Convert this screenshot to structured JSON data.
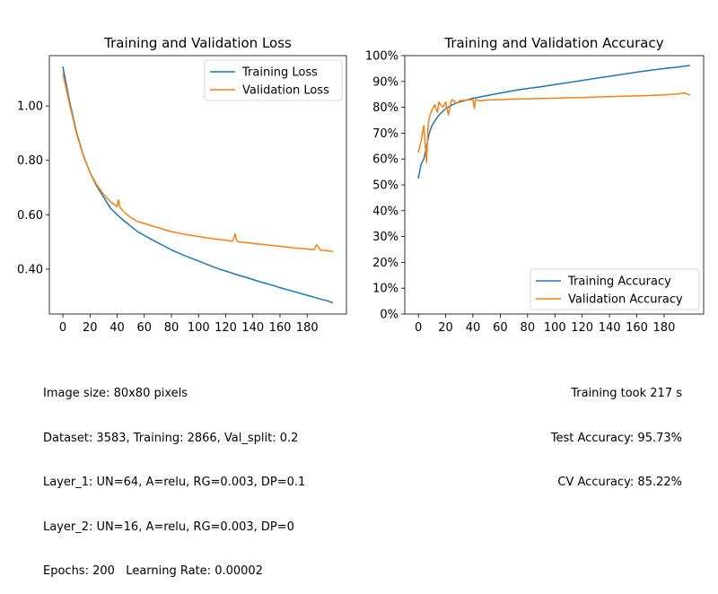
{
  "chart_data": [
    {
      "type": "line",
      "title": "Training and Validation Loss",
      "xlabel": "",
      "ylabel": "",
      "xlim": [
        -9.95,
        208.95
      ],
      "ylim": [
        0.235,
        1.185
      ],
      "xticks": [
        0,
        20,
        40,
        60,
        80,
        100,
        120,
        140,
        160,
        180
      ],
      "xtick_labels": [
        "0",
        "20",
        "40",
        "60",
        "80",
        "100",
        "120",
        "140",
        "160",
        "180"
      ],
      "yticks": [
        0.4,
        0.6,
        0.8,
        1.0
      ],
      "ytick_labels": [
        "0.40",
        "0.60",
        "0.80",
        "1.00"
      ],
      "grid": false,
      "legend": "top-right",
      "series": [
        {
          "name": "Training Loss",
          "color": "#1f77b4",
          "x": [
            0,
            5,
            10,
            15,
            20,
            25,
            30,
            35,
            40,
            45,
            50,
            55,
            60,
            65,
            70,
            75,
            80,
            85,
            90,
            95,
            100,
            105,
            110,
            115,
            120,
            125,
            130,
            135,
            140,
            145,
            150,
            155,
            160,
            165,
            170,
            175,
            180,
            185,
            190,
            195,
            199
          ],
          "values": [
            1.145,
            1.015,
            0.905,
            0.82,
            0.755,
            0.705,
            0.665,
            0.625,
            0.6,
            0.578,
            0.558,
            0.538,
            0.524,
            0.51,
            0.497,
            0.484,
            0.471,
            0.46,
            0.449,
            0.44,
            0.43,
            0.42,
            0.41,
            0.401,
            0.393,
            0.385,
            0.377,
            0.37,
            0.362,
            0.354,
            0.347,
            0.34,
            0.332,
            0.325,
            0.318,
            0.311,
            0.304,
            0.297,
            0.29,
            0.283,
            0.277
          ]
        },
        {
          "name": "Validation Loss",
          "color": "#ff7f0e",
          "x": [
            0,
            5,
            10,
            15,
            20,
            25,
            30,
            35,
            40,
            41,
            42,
            45,
            50,
            55,
            60,
            65,
            70,
            75,
            80,
            85,
            90,
            95,
            100,
            105,
            110,
            115,
            120,
            125,
            127,
            128,
            130,
            135,
            140,
            145,
            150,
            155,
            160,
            165,
            170,
            175,
            180,
            185,
            187,
            190,
            195,
            199
          ],
          "values": [
            1.12,
            1.005,
            0.9,
            0.818,
            0.755,
            0.71,
            0.675,
            0.648,
            0.63,
            0.655,
            0.628,
            0.61,
            0.59,
            0.575,
            0.568,
            0.56,
            0.553,
            0.545,
            0.538,
            0.533,
            0.528,
            0.524,
            0.52,
            0.516,
            0.512,
            0.509,
            0.506,
            0.503,
            0.53,
            0.505,
            0.5,
            0.498,
            0.495,
            0.492,
            0.49,
            0.487,
            0.484,
            0.481,
            0.478,
            0.476,
            0.474,
            0.472,
            0.49,
            0.47,
            0.468,
            0.465
          ]
        }
      ]
    },
    {
      "type": "line",
      "title": "Training and Validation Accuracy",
      "xlabel": "",
      "ylabel": "",
      "xlim": [
        -9.95,
        208.95
      ],
      "ylim": [
        0,
        100
      ],
      "xticks": [
        0,
        20,
        40,
        60,
        80,
        100,
        120,
        140,
        160,
        180
      ],
      "xtick_labels": [
        "0",
        "20",
        "40",
        "60",
        "80",
        "100",
        "120",
        "140",
        "160",
        "180"
      ],
      "yticks": [
        0,
        10,
        20,
        30,
        40,
        50,
        60,
        70,
        80,
        90,
        100
      ],
      "ytick_labels": [
        "0%",
        "10%",
        "20%",
        "30%",
        "40%",
        "50%",
        "60%",
        "70%",
        "80%",
        "90%",
        "100%"
      ],
      "grid": false,
      "legend": "bottom-right",
      "series": [
        {
          "name": "Training Accuracy",
          "color": "#1f77b4",
          "x": [
            0,
            2,
            4,
            6,
            8,
            10,
            15,
            20,
            25,
            30,
            40,
            50,
            60,
            70,
            80,
            90,
            100,
            110,
            120,
            130,
            140,
            150,
            160,
            170,
            180,
            190,
            199
          ],
          "values": [
            52.5,
            58,
            60,
            65,
            70,
            73,
            77,
            79.5,
            81,
            82,
            83.5,
            84.5,
            85.5,
            86.5,
            87.3,
            88,
            88.8,
            89.6,
            90.4,
            91.2,
            92,
            92.8,
            93.6,
            94.3,
            95,
            95.6,
            96.2
          ]
        },
        {
          "name": "Validation Accuracy",
          "color": "#ff7f0e",
          "x": [
            0,
            2,
            4,
            5,
            6,
            7,
            8,
            10,
            12,
            14,
            15,
            18,
            20,
            22,
            24,
            25,
            28,
            30,
            35,
            40,
            41,
            42,
            45,
            50,
            60,
            70,
            80,
            90,
            100,
            110,
            120,
            130,
            140,
            150,
            160,
            170,
            180,
            190,
            195,
            199
          ],
          "values": [
            62.5,
            67,
            73,
            66,
            58.5,
            72,
            76,
            79,
            81,
            78,
            82,
            80,
            82,
            77,
            82,
            83,
            81.5,
            82.5,
            82.8,
            83,
            79.5,
            83,
            82.5,
            82.8,
            83,
            83.2,
            83.3,
            83.4,
            83.5,
            83.7,
            83.8,
            84,
            84.1,
            84.3,
            84.4,
            84.6,
            84.8,
            85.2,
            85.5,
            84.8
          ]
        }
      ]
    }
  ],
  "notes": {
    "left": [
      "Image size: 80x80 pixels",
      "Dataset: 3583, Training: 2866, Val_split: 0.2",
      "Layer_1: UN=64, A=relu, RG=0.003, DP=0.1",
      "Layer_2: UN=16, A=relu, RG=0.003, DP=0",
      "Epochs: 200   Learning Rate: 0.00002"
    ],
    "right": [
      "Training took 217 s",
      "Test Accuracy: 95.73%",
      "CV Accuracy: 85.22%"
    ]
  }
}
